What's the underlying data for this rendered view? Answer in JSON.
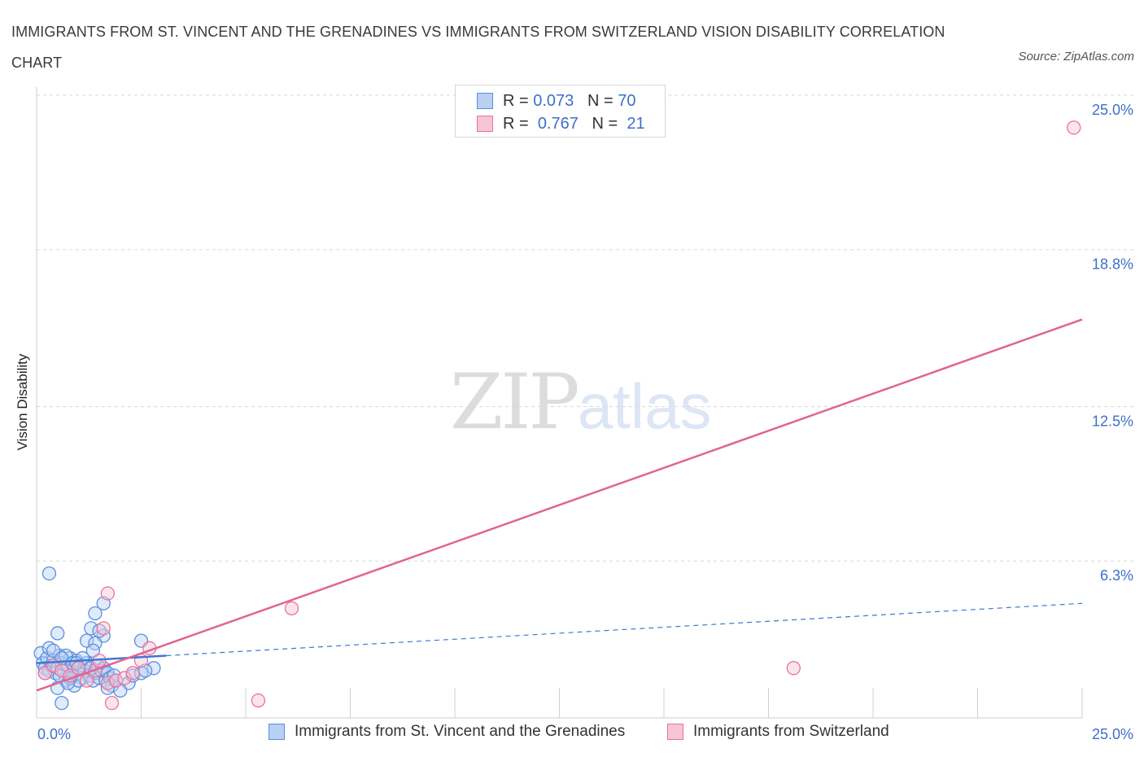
{
  "title": "IMMIGRANTS FROM ST. VINCENT AND THE GRENADINES VS IMMIGRANTS FROM SWITZERLAND VISION DISABILITY CORRELATION CHART",
  "source": "Source: ZipAtlas.com",
  "watermark": {
    "zip": "ZIP",
    "atlas": "atlas"
  },
  "legend_top": {
    "series1": {
      "r_label": "R =",
      "r_value": "0.073",
      "n_label": "N =",
      "n_value": "70"
    },
    "series2": {
      "r_label": "R =",
      "r_value": "0.767",
      "n_label": "N =",
      "n_value": "21"
    }
  },
  "colors": {
    "blue": "#5b8fdc",
    "blue_fill": "#b8d0f3",
    "pink": "#e9739e",
    "pink_fill": "#f6c5d5",
    "grid": "#d8d8d8",
    "tick_text": "#3d6fc9"
  },
  "chart_data": {
    "type": "scatter",
    "title": "IMMIGRANTS FROM ST. VINCENT AND THE GRENADINES VS IMMIGRANTS FROM SWITZERLAND VISION DISABILITY CORRELATION CHART",
    "xlabel": "",
    "ylabel": "Vision Disability",
    "xlim": [
      0,
      25
    ],
    "ylim": [
      0,
      25
    ],
    "x_tick_labels": [
      "0.0%",
      "25.0%"
    ],
    "y_ticks": [
      6.3,
      12.5,
      18.8,
      25.0
    ],
    "y_tick_labels": [
      "6.3%",
      "12.5%",
      "18.8%",
      "25.0%"
    ],
    "series": [
      {
        "name": "Immigrants from St. Vincent and the Grenadines",
        "color": "blue",
        "R": 0.073,
        "N": 70,
        "trend": {
          "solid": [
            [
              0,
              2.2
            ],
            [
              3.1,
              2.5
            ]
          ],
          "dashed": [
            [
              3.1,
              2.5
            ],
            [
              25,
              4.6
            ]
          ]
        },
        "points": [
          [
            0.1,
            2.6
          ],
          [
            0.15,
            2.2
          ],
          [
            0.2,
            2.0
          ],
          [
            0.25,
            2.4
          ],
          [
            0.3,
            1.9
          ],
          [
            0.3,
            2.8
          ],
          [
            0.35,
            2.1
          ],
          [
            0.4,
            2.3
          ],
          [
            0.45,
            1.8
          ],
          [
            0.5,
            2.0
          ],
          [
            0.55,
            2.5
          ],
          [
            0.6,
            2.2
          ],
          [
            0.65,
            1.9
          ],
          [
            0.7,
            1.5
          ],
          [
            0.75,
            2.1
          ],
          [
            0.8,
            2.4
          ],
          [
            0.85,
            1.7
          ],
          [
            0.9,
            2.0
          ],
          [
            0.95,
            2.3
          ],
          [
            1.0,
            1.8
          ],
          [
            1.05,
            2.1
          ],
          [
            1.1,
            1.6
          ],
          [
            1.15,
            1.9
          ],
          [
            1.2,
            2.2
          ],
          [
            1.25,
            1.7
          ],
          [
            1.3,
            2.0
          ],
          [
            1.35,
            1.5
          ],
          [
            1.4,
            1.8
          ],
          [
            1.45,
            2.1
          ],
          [
            1.5,
            1.6
          ],
          [
            1.55,
            1.9
          ],
          [
            1.6,
            2.0
          ],
          [
            1.65,
            1.5
          ],
          [
            1.7,
            1.8
          ],
          [
            1.75,
            1.6
          ],
          [
            1.8,
            1.3
          ],
          [
            1.85,
            1.7
          ],
          [
            1.9,
            1.5
          ],
          [
            2.2,
            1.4
          ],
          [
            2.3,
            1.7
          ],
          [
            2.5,
            1.8
          ],
          [
            2.8,
            2.0
          ],
          [
            0.3,
            5.8
          ],
          [
            0.5,
            3.4
          ],
          [
            1.2,
            3.1
          ],
          [
            1.3,
            3.6
          ],
          [
            1.4,
            4.2
          ],
          [
            1.6,
            4.6
          ],
          [
            1.6,
            3.3
          ],
          [
            1.5,
            3.5
          ],
          [
            1.4,
            3.0
          ],
          [
            1.35,
            2.7
          ],
          [
            2.5,
            3.1
          ],
          [
            2.6,
            1.9
          ],
          [
            0.6,
            0.6
          ],
          [
            0.5,
            1.2
          ],
          [
            0.9,
            1.3
          ],
          [
            1.0,
            1.5
          ],
          [
            0.7,
            2.5
          ],
          [
            0.8,
            1.6
          ],
          [
            0.2,
            1.8
          ],
          [
            0.4,
            2.7
          ],
          [
            0.6,
            2.4
          ],
          [
            1.1,
            2.4
          ],
          [
            0.85,
            2.2
          ],
          [
            1.7,
            1.2
          ],
          [
            2.0,
            1.1
          ],
          [
            0.55,
            1.7
          ],
          [
            0.75,
            1.4
          ],
          [
            0.95,
            2.2
          ]
        ]
      },
      {
        "name": "Immigrants from Switzerland",
        "color": "pink",
        "R": 0.767,
        "N": 21,
        "trend": {
          "solid": [
            [
              0,
              1.1
            ],
            [
              25,
              16.0
            ]
          ]
        },
        "points": [
          [
            0.2,
            1.8
          ],
          [
            0.4,
            2.1
          ],
          [
            0.6,
            1.9
          ],
          [
            0.8,
            1.7
          ],
          [
            1.0,
            2.0
          ],
          [
            1.2,
            1.5
          ],
          [
            1.4,
            1.9
          ],
          [
            1.5,
            2.3
          ],
          [
            1.7,
            1.4
          ],
          [
            1.9,
            1.5
          ],
          [
            2.1,
            1.6
          ],
          [
            2.3,
            1.8
          ],
          [
            2.7,
            2.8
          ],
          [
            1.6,
            3.6
          ],
          [
            1.7,
            5.0
          ],
          [
            1.8,
            0.6
          ],
          [
            6.1,
            4.4
          ],
          [
            5.3,
            0.7
          ],
          [
            18.1,
            2.0
          ],
          [
            24.8,
            23.7
          ],
          [
            2.5,
            2.3
          ]
        ]
      }
    ]
  }
}
